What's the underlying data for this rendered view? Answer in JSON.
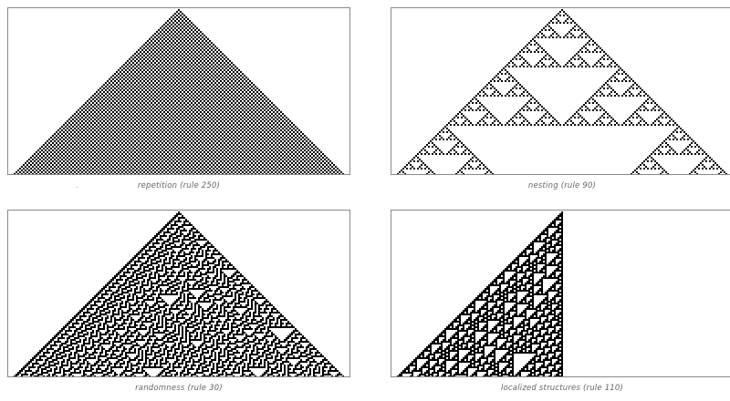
{
  "figure": {
    "panels": [
      {
        "caption": "repetition (rule 250)",
        "rule": 250
      },
      {
        "caption": "nesting (rule 90)",
        "rule": 90
      },
      {
        "caption": "randomness (rule 30)",
        "rule": 30
      },
      {
        "caption": "localized structures (rule 110)",
        "rule": 110
      }
    ],
    "colors": {
      "cell_on": "#000000",
      "cell_off": "#ffffff",
      "frame": "#8a8a8a",
      "caption": "#666666"
    }
  }
}
